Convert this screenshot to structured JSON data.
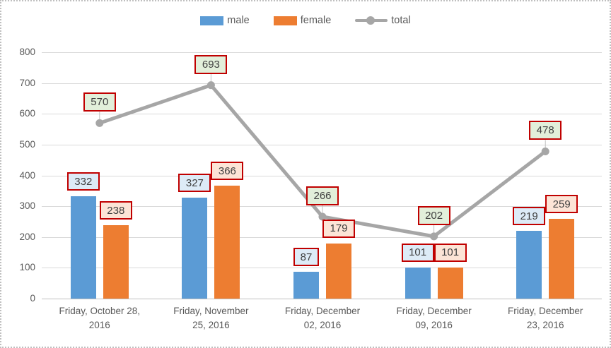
{
  "legend": [
    {
      "label": "male",
      "type": "bar",
      "color": "#5b9bd5"
    },
    {
      "label": "female",
      "type": "bar",
      "color": "#ed7d31"
    },
    {
      "label": "total",
      "type": "line",
      "color": "#a6a6a6"
    }
  ],
  "colors": {
    "male_bar": "#5b9bd5",
    "female_bar": "#ed7d31",
    "total_line": "#a6a6a6",
    "gridline": "#d9d9d9",
    "axis_line": "#bfbfbf",
    "axis_text": "#595959",
    "label_border": "#c00000",
    "label_text": "#404040",
    "male_label_bg": "#ddebf7",
    "female_label_bg": "#fce4d6",
    "total_label_bg": "#e2efda"
  },
  "chart_data": {
    "type": "bar",
    "title": "",
    "xlabel": "",
    "ylabel": "",
    "categories": [
      "Friday, October 28,\n2016",
      "Friday, November\n25, 2016",
      "Friday, December\n02, 2016",
      "Friday, December\n09, 2016",
      "Friday, December\n23, 2016"
    ],
    "series": [
      {
        "name": "male",
        "type": "bar",
        "color": "#5b9bd5",
        "label_bg": "#ddebf7",
        "values": [
          332,
          327,
          87,
          101,
          219
        ]
      },
      {
        "name": "female",
        "type": "bar",
        "color": "#ed7d31",
        "label_bg": "#fce4d6",
        "values": [
          238,
          366,
          179,
          101,
          259
        ]
      },
      {
        "name": "total",
        "type": "line",
        "color": "#a6a6a6",
        "label_bg": "#e2efda",
        "values": [
          570,
          693,
          266,
          202,
          478
        ]
      }
    ],
    "ylim": [
      0,
      800
    ],
    "yticks": [
      0,
      100,
      200,
      300,
      400,
      500,
      600,
      700,
      800
    ],
    "grid": true,
    "legend_position": "top",
    "data_labels": true
  }
}
